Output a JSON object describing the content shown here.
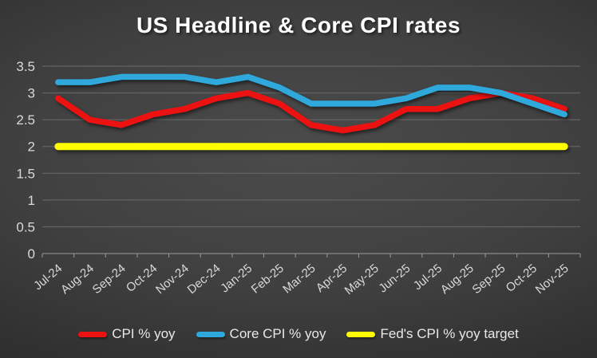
{
  "chart_data": {
    "type": "line",
    "title": "US Headline & Core CPI rates",
    "categories": [
      "Jul-24",
      "Aug-24",
      "Sep-24",
      "Oct-24",
      "Nov-24",
      "Dec-24",
      "Jan-25",
      "Feb-25",
      "Mar-25",
      "Apr-25",
      "May-25",
      "Jun-25",
      "Jul-25",
      "Aug-25",
      "Sep-25",
      "Oct-25",
      "Nov-25"
    ],
    "series": [
      {
        "name": "CPI % yoy",
        "color": "#ed1212",
        "stroke_width": 7.5,
        "values": [
          2.9,
          2.5,
          2.4,
          2.6,
          2.7,
          2.9,
          3.0,
          2.8,
          2.4,
          2.3,
          2.4,
          2.7,
          2.7,
          2.9,
          3.0,
          2.9,
          2.7
        ]
      },
      {
        "name": "Core CPI % yoy",
        "color": "#2fa8dc",
        "stroke_width": 7.5,
        "values": [
          3.2,
          3.2,
          3.3,
          3.3,
          3.3,
          3.2,
          3.3,
          3.1,
          2.8,
          2.8,
          2.8,
          2.9,
          3.1,
          3.1,
          3.0,
          2.8,
          2.6
        ]
      },
      {
        "name": "Fed's CPI % yoy target",
        "color": "#fdfd00",
        "stroke_width": 9,
        "values": [
          2.0,
          2.0,
          2.0,
          2.0,
          2.0,
          2.0,
          2.0,
          2.0,
          2.0,
          2.0,
          2.0,
          2.0,
          2.0,
          2.0,
          2.0,
          2.0,
          2.0
        ]
      }
    ],
    "xlabel": "",
    "ylabel": "",
    "ylim": [
      0,
      3.5
    ],
    "ytick_step": 0.5,
    "ytick_labels": [
      "0",
      "0.5",
      "1",
      "1.5",
      "2",
      "2.5",
      "3",
      "3.5"
    ],
    "grid": true,
    "legend_position": "bottom"
  },
  "colors": {
    "title_text": "#ffffff",
    "tick_text": "#d9d9d9",
    "legend_text": "#e8e8e8",
    "gridline": "#6b6b6b",
    "axis": "#9a9a9a",
    "background": "#3c3c3c",
    "cpi_line": "#ed1212",
    "core_cpi_line": "#2fa8dc",
    "fed_target_line": "#fdfd00"
  }
}
